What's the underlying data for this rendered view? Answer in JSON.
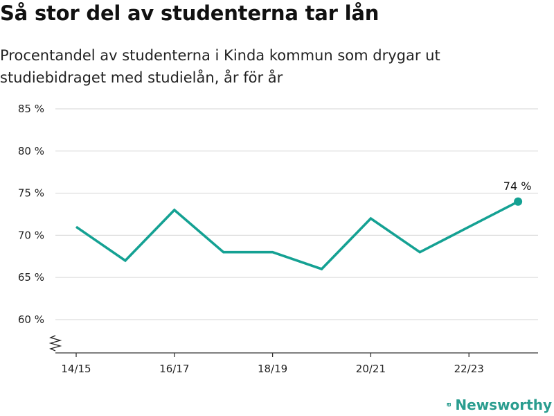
{
  "title": "Så stor del av studenterna tar lån",
  "subtitle": "Procentandel av studenterna i Kinda kommun som drygar ut studiebidraget med studielån, år för år",
  "brand": "Newsworthy",
  "colors": {
    "line": "#14a193",
    "grid": "#dddddd",
    "axis": "#333333",
    "brand": "#2a9d8f"
  },
  "chart_data": {
    "type": "line",
    "x": [
      "14/15",
      "15/16",
      "16/17",
      "17/18",
      "18/19",
      "19/20",
      "20/21",
      "21/22",
      "22/23",
      "23/24"
    ],
    "x_tick_labels": [
      "14/15",
      "16/17",
      "18/19",
      "20/21",
      "22/23"
    ],
    "series": [
      {
        "values": [
          71,
          67,
          73,
          68,
          68,
          66,
          72,
          68,
          71,
          74
        ]
      }
    ],
    "y_ticks": [
      60,
      65,
      70,
      75,
      80,
      85
    ],
    "y_tick_labels": [
      "60 %",
      "65 %",
      "70 %",
      "75 %",
      "80 %",
      "85 %"
    ],
    "ylim": [
      60,
      85
    ],
    "y_axis_broken": true,
    "grid": true,
    "last_point_label": "74 %"
  }
}
